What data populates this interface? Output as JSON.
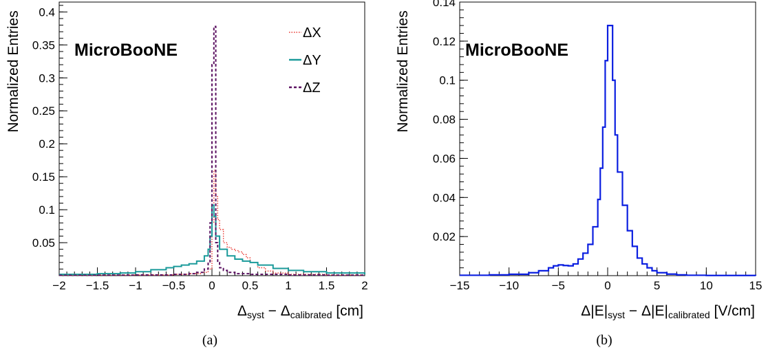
{
  "chart_data": [
    {
      "type": "line",
      "panel_label": "(a)",
      "annotation": "MicroBooNE",
      "ylabel": "Normalized Entries",
      "xlabel": {
        "main": "Δ",
        "sub1": "syst",
        "mid": " − Δ",
        "sub2": "calibrated",
        "unit": " [cm]"
      },
      "xlim": [
        -2,
        2
      ],
      "ylim": [
        0,
        0.415
      ],
      "x_ticks": [
        -2,
        -1.5,
        -1,
        -0.5,
        0,
        0.5,
        1,
        1.5,
        2
      ],
      "x_tick_labels": [
        "−2",
        "−1.5",
        "−1",
        "−0.5",
        "0",
        "0.5",
        "1",
        "1.5",
        "2"
      ],
      "y_ticks": [
        0.05,
        0.1,
        0.15,
        0.2,
        0.25,
        0.3,
        0.35,
        0.4
      ],
      "y_tick_labels": [
        "0.05",
        "0.1",
        "0.15",
        "0.2",
        "0.25",
        "0.3",
        "0.35",
        "0.4"
      ],
      "legend_position": "top-right",
      "series": [
        {
          "name": "ΔX",
          "color": "#e8352e",
          "style": "dotted",
          "x": [
            -2,
            -1.5,
            -1,
            -0.5,
            -0.3,
            -0.15,
            -0.05,
            0,
            0.025,
            0.05,
            0.075,
            0.1,
            0.15,
            0.2,
            0.25,
            0.3,
            0.35,
            0.4,
            0.45,
            0.5,
            0.6,
            0.7,
            0.8,
            1,
            1.5,
            2
          ],
          "y": [
            0.001,
            0.001,
            0.001,
            0.002,
            0.003,
            0.005,
            0.01,
            0.08,
            0.16,
            0.12,
            0.085,
            0.07,
            0.05,
            0.043,
            0.04,
            0.038,
            0.036,
            0.032,
            0.027,
            0.02,
            0.012,
            0.007,
            0.004,
            0.002,
            0.001,
            0.001
          ]
        },
        {
          "name": "ΔY",
          "color": "#1a9a9a",
          "style": "solid",
          "x": [
            -2,
            -1.5,
            -1.2,
            -1,
            -0.8,
            -0.6,
            -0.5,
            -0.4,
            -0.3,
            -0.2,
            -0.1,
            -0.05,
            -0.025,
            0,
            0.025,
            0.05,
            0.1,
            0.2,
            0.3,
            0.4,
            0.5,
            0.6,
            0.8,
            1,
            1.2,
            1.5,
            2
          ],
          "y": [
            0.002,
            0.003,
            0.004,
            0.006,
            0.009,
            0.012,
            0.014,
            0.016,
            0.018,
            0.022,
            0.03,
            0.04,
            0.06,
            0.107,
            0.09,
            0.06,
            0.04,
            0.03,
            0.025,
            0.022,
            0.02,
            0.016,
            0.011,
            0.008,
            0.006,
            0.004,
            0.002
          ]
        },
        {
          "name": "ΔZ",
          "color": "#5a1060",
          "style": "dashed",
          "x": [
            -2,
            -1.5,
            -1,
            -0.5,
            -0.3,
            -0.2,
            -0.1,
            -0.05,
            -0.025,
            0,
            0.025,
            0.05,
            0.075,
            0.1,
            0.15,
            0.2,
            0.3,
            0.5,
            1,
            1.5,
            2
          ],
          "y": [
            0.0005,
            0.0008,
            0.001,
            0.002,
            0.003,
            0.005,
            0.01,
            0.02,
            0.08,
            0.32,
            0.378,
            0.05,
            0.02,
            0.012,
            0.008,
            0.005,
            0.003,
            0.002,
            0.001,
            0.0008,
            0.0005
          ]
        }
      ]
    },
    {
      "type": "line",
      "panel_label": "(b)",
      "annotation": "MicroBooNE",
      "ylabel": "Normalized Entries",
      "xlabel": {
        "main": "Δ|E|",
        "sub1": "syst",
        "mid": " − Δ|E|",
        "sub2": "calibrated",
        "unit": " [V/cm]"
      },
      "xlim": [
        -15,
        15
      ],
      "ylim": [
        0,
        0.14
      ],
      "x_ticks": [
        -15,
        -10,
        -5,
        0,
        5,
        10,
        15
      ],
      "x_tick_labels": [
        "−15",
        "−10",
        "−5",
        "0",
        "5",
        "10",
        "15"
      ],
      "y_ticks": [
        0.02,
        0.04,
        0.06,
        0.08,
        0.1,
        0.12,
        0.14
      ],
      "y_tick_labels": [
        "0.02",
        "0.04",
        "0.06",
        "0.08",
        "0.1",
        "0.12",
        "0.14"
      ],
      "series": [
        {
          "name": "",
          "color": "#0a1ee0",
          "style": "solid",
          "x": [
            -15,
            -12,
            -10,
            -8,
            -7,
            -6,
            -5.5,
            -5,
            -4.5,
            -4,
            -3.5,
            -3,
            -2.5,
            -2,
            -1.5,
            -1,
            -0.75,
            -0.5,
            -0.25,
            0,
            0.25,
            0.5,
            0.75,
            1,
            1.5,
            2,
            2.5,
            3,
            3.5,
            4,
            4.5,
            5,
            6,
            7,
            8,
            10,
            12,
            15
          ],
          "y": [
            0.0002,
            0.0004,
            0.0007,
            0.0015,
            0.0025,
            0.004,
            0.005,
            0.0055,
            0.0052,
            0.005,
            0.006,
            0.0085,
            0.0115,
            0.016,
            0.025,
            0.039,
            0.055,
            0.076,
            0.11,
            0.128,
            0.128,
            0.1,
            0.072,
            0.053,
            0.036,
            0.023,
            0.015,
            0.009,
            0.006,
            0.004,
            0.0025,
            0.0015,
            0.0008,
            0.0004,
            0.0002,
            0.0001,
            0.0001,
            0
          ]
        }
      ]
    }
  ]
}
